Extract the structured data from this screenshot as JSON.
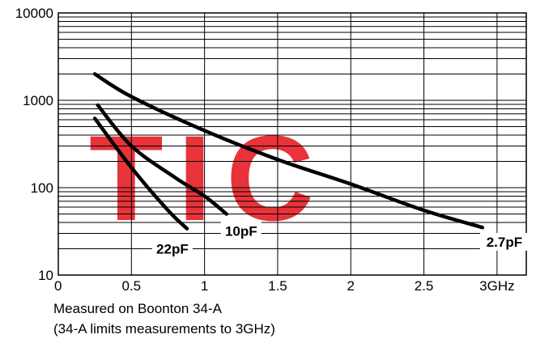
{
  "chart_data": {
    "type": "line",
    "title": "",
    "xlabel": "",
    "ylabel": "",
    "xlim": [
      0,
      3.2
    ],
    "ylim": [
      10,
      10000
    ],
    "y_scale": "log",
    "grid": true,
    "x_ticks": [
      {
        "value": 0,
        "label": "0"
      },
      {
        "value": 0.5,
        "label": "0.5"
      },
      {
        "value": 1,
        "label": "1"
      },
      {
        "value": 1.5,
        "label": "1.5"
      },
      {
        "value": 2,
        "label": "2"
      },
      {
        "value": 2.5,
        "label": "2.5"
      },
      {
        "value": 3,
        "label": "3GHz"
      }
    ],
    "y_ticks": [
      {
        "value": 10,
        "label": "10"
      },
      {
        "value": 100,
        "label": "100"
      },
      {
        "value": 1000,
        "label": "1000"
      },
      {
        "value": 10000,
        "label": "10000"
      }
    ],
    "series": [
      {
        "name": "2.7pF",
        "x": [
          0.25,
          0.5,
          1.0,
          1.5,
          2.0,
          2.5,
          2.9
        ],
        "y": [
          2000,
          1100,
          450,
          210,
          110,
          55,
          35
        ]
      },
      {
        "name": "10pF",
        "x": [
          0.27,
          0.5,
          0.8,
          1.0,
          1.15
        ],
        "y": [
          880,
          300,
          130,
          80,
          50
        ]
      },
      {
        "name": "22pF",
        "x": [
          0.25,
          0.5,
          0.75,
          0.88
        ],
        "y": [
          620,
          170,
          55,
          34
        ]
      }
    ],
    "label_positions": [
      {
        "series": "2.7pF",
        "x": 3.05,
        "y": 24
      },
      {
        "series": "10pF",
        "x": 1.25,
        "y": 32
      },
      {
        "series": "22pF",
        "x": 0.78,
        "y": 20
      }
    ]
  },
  "notes": {
    "line1": "Measured on Boonton 34-A",
    "line2": "(34-A limits measurements to 3GHz)"
  },
  "watermark": {
    "text": "TIC",
    "color": "#e8333a"
  }
}
